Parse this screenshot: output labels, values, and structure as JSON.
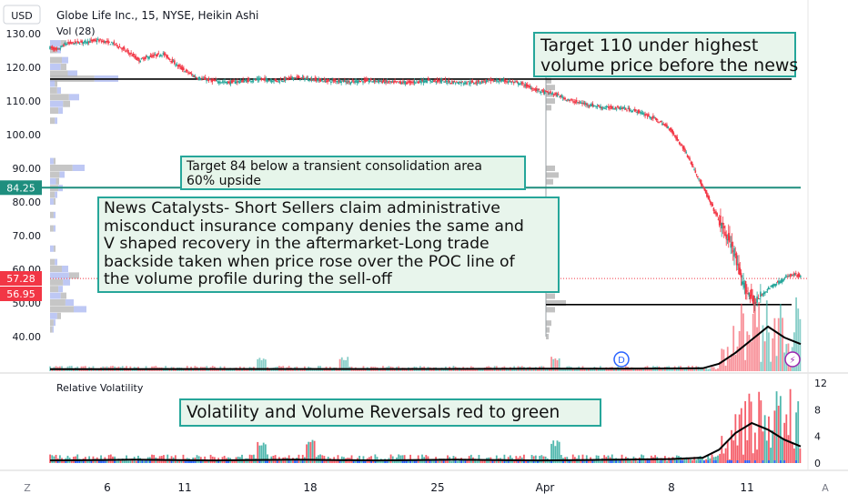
{
  "header": {
    "currency": "USD",
    "symbol_title": "Globe Life Inc., 15, NYSE, Heikin Ashi",
    "volume_indicator": "Vol (28)"
  },
  "price_axis": {
    "labels": [
      "130.00",
      "120.00",
      "110.00",
      "100.00",
      "90.00",
      "80.00",
      "70.00",
      "60.00",
      "50.00",
      "40.00"
    ],
    "tags": [
      {
        "label": "84.25",
        "color": "#1e8e7e"
      },
      {
        "label": "57.28",
        "color": "#f23645"
      },
      {
        "label": "56.95",
        "color": "#f23645"
      }
    ]
  },
  "volatility_panel": {
    "title": "Relative Volatility",
    "axis_labels": [
      "12",
      "8",
      "4",
      "0"
    ]
  },
  "time_axis": {
    "labels": [
      "6",
      "11",
      "18",
      "25",
      "Apr",
      "8",
      "11"
    ],
    "left_button": "Z",
    "right_button": "A"
  },
  "event_markers": {
    "dividend": "D",
    "earnings": "⚡"
  },
  "annotations": [
    {
      "lines": [
        "Target 110 under highest",
        "volume price before the news"
      ]
    },
    {
      "lines": [
        "Target 84 below a transient consolidation area",
        "60% upside"
      ]
    },
    {
      "lines": [
        "News Catalysts- Short Sellers claim  administrative",
        "misconduct insurance company denies the same and",
        "V shaped recovery in the aftermarket-Long trade",
        "backside taken when price rose over the POC line of",
        "the volume profile during the sell-off"
      ]
    },
    {
      "lines": [
        "Volatility and Volume  Reversals red to green"
      ]
    }
  ],
  "colors": {
    "up": "#26a69a",
    "down": "#f23645",
    "annotation_fill": "#e8f5ec",
    "annotation_border": "#26a69a",
    "horizontal_lines": "#000000",
    "target_line": "#1e8e7e",
    "profile_gray": "#b3b3b3",
    "profile_blue": "#a8b6f0"
  },
  "chart_data": {
    "type": "line",
    "title": "Globe Life Inc., 15, NYSE, Heikin Ashi",
    "x_tick_labels": [
      "6",
      "11",
      "18",
      "25",
      "Apr",
      "8",
      "11"
    ],
    "y_range": [
      34,
      133
    ],
    "grid": false,
    "series": [
      {
        "name": "Vol (28)"
      },
      {
        "name": "Relative Volatility"
      }
    ],
    "price_path": {
      "x": [
        0,
        0.5,
        1,
        2,
        3,
        4,
        5,
        5.5,
        6,
        7,
        8,
        9,
        10,
        11,
        12,
        13,
        14,
        15,
        16,
        17,
        18,
        18.5,
        19,
        20,
        21,
        22,
        23,
        24,
        25,
        26,
        27,
        28,
        29,
        30,
        31,
        31.5,
        32,
        33,
        34,
        35,
        36,
        37,
        38,
        39,
        40,
        41,
        42,
        42.3,
        42.6,
        43,
        43.3,
        43.6,
        43.8,
        44,
        44.3,
        44.6,
        45,
        45.3,
        45.6,
        46
      ],
      "y": [
        126,
        125,
        127,
        127.5,
        128,
        127,
        124,
        122,
        123,
        124,
        120,
        117,
        116,
        115.5,
        116,
        116.5,
        116,
        117,
        116.5,
        116,
        116,
        115.5,
        116,
        116,
        115.5,
        115.5,
        116,
        116,
        115.5,
        115.5,
        116,
        116,
        115,
        113,
        112,
        111,
        110,
        109,
        108,
        108,
        107,
        105,
        102,
        95,
        85,
        75,
        65,
        58,
        55,
        52,
        50,
        52,
        53,
        54,
        55,
        56,
        57,
        58,
        58.5,
        58
      ]
    },
    "horizontal_levels": [
      {
        "label": "Target 110 under highest volume price",
        "value": 116.5
      },
      {
        "label": "Target 84",
        "value": 84.25
      },
      {
        "label": "POC line",
        "value": 49.5
      }
    ],
    "last_price": 57.28,
    "high_price_tag": 56.95,
    "volume_overlay_line": {
      "x": [
        0,
        10,
        20,
        30,
        35,
        40,
        41,
        42,
        43,
        44,
        45,
        46
      ],
      "v": [
        0.05,
        0.06,
        0.06,
        0.07,
        0.07,
        0.09,
        0.3,
        0.8,
        1.4,
        2.0,
        1.5,
        1.2
      ]
    },
    "relative_volatility": {
      "y_range": [
        0,
        12
      ],
      "x": [
        0,
        5,
        10,
        15,
        20,
        25,
        30,
        35,
        38,
        40,
        41,
        42,
        43,
        44,
        45,
        46
      ],
      "y": [
        0.4,
        0.5,
        0.4,
        0.5,
        0.4,
        0.5,
        0.4,
        0.5,
        0.6,
        0.8,
        2,
        4.5,
        6,
        5,
        3.5,
        2.5
      ]
    }
  }
}
